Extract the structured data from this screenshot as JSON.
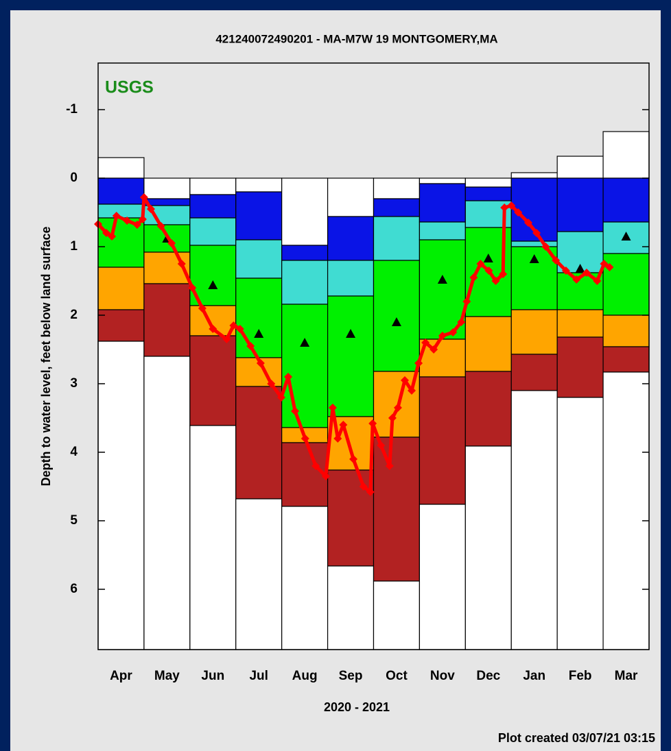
{
  "chart_data": {
    "type": "percentile_bar",
    "title": "421240072490201 - MA-M7W 19 MONTGOMERY,MA",
    "logo": "USGS",
    "ylabel": "Depth to water level, feet below land surface",
    "xlabel": "2020 - 2021",
    "footnote": "Plot created 03/07/21 03:15",
    "inverted_y": true,
    "ylim": [
      -1.68,
      6.88
    ],
    "yticks": [
      -1,
      0,
      1,
      2,
      3,
      4,
      5,
      6
    ],
    "categories": [
      "Apr",
      "May",
      "Jun",
      "Jul",
      "Aug",
      "Sep",
      "Oct",
      "Nov",
      "Dec",
      "Jan",
      "Feb",
      "Mar"
    ],
    "bands": {
      "colors": [
        "#ffffff",
        "#0a14e6",
        "#40dcd2",
        "#00f000",
        "#ffa500",
        "#b22222",
        "#ffffff"
      ],
      "values": [
        [
          -0.3,
          0.0,
          0.38,
          0.58,
          1.3,
          1.92,
          2.38
        ],
        [
          0.0,
          0.3,
          0.4,
          0.68,
          1.08,
          1.54,
          2.6
        ],
        [
          0.0,
          0.24,
          0.58,
          0.98,
          1.86,
          2.3,
          3.61
        ],
        [
          0.0,
          0.2,
          0.9,
          1.46,
          2.62,
          3.04,
          4.68
        ],
        [
          0.0,
          0.98,
          1.2,
          1.84,
          3.64,
          3.86,
          4.79
        ],
        [
          0.0,
          0.56,
          1.2,
          1.72,
          3.48,
          4.26,
          5.66
        ],
        [
          0.0,
          0.3,
          0.56,
          1.2,
          2.82,
          3.78,
          5.88
        ],
        [
          0.0,
          0.08,
          0.64,
          0.9,
          2.35,
          2.9,
          4.76
        ],
        [
          0.0,
          0.13,
          0.33,
          0.72,
          2.02,
          2.82,
          3.91
        ],
        [
          -0.08,
          0.0,
          0.92,
          1.0,
          1.92,
          2.57,
          3.1
        ],
        [
          -0.32,
          0.0,
          0.78,
          1.38,
          1.92,
          2.32,
          3.2
        ],
        [
          -0.68,
          0.0,
          0.64,
          1.1,
          2.0,
          2.46,
          2.83
        ]
      ]
    },
    "medians": {
      "color": "#000000",
      "values": [
        null,
        0.88,
        1.56,
        2.27,
        2.4,
        2.27,
        2.1,
        1.48,
        1.17,
        1.18,
        1.32,
        0.85
      ]
    },
    "daily": {
      "color": "#ff0000",
      "xlim": [
        0,
        12
      ],
      "x": [
        0.0,
        0.18,
        0.3,
        0.4,
        0.63,
        0.85,
        0.97,
        1.0,
        1.15,
        1.37,
        1.6,
        1.82,
        2.05,
        2.27,
        2.5,
        2.8,
        2.95,
        3.09,
        3.32,
        3.54,
        3.77,
        3.99,
        4.14,
        4.29,
        4.51,
        4.74,
        4.96,
        5.11,
        5.22,
        5.34,
        5.56,
        5.78,
        5.93,
        5.98,
        6.16,
        6.35,
        6.41,
        6.53,
        6.68,
        6.83,
        6.98,
        7.13,
        7.31,
        7.5,
        7.73,
        7.91,
        8.03,
        8.18,
        8.33,
        8.51,
        8.66,
        8.82,
        8.85,
        9.0,
        9.15,
        9.37,
        9.55,
        9.75,
        9.97,
        10.19,
        10.42,
        10.64,
        10.87,
        11.02,
        11.14
      ],
      "values": [
        0.67,
        0.8,
        0.85,
        0.55,
        0.62,
        0.68,
        0.6,
        0.28,
        0.45,
        0.7,
        0.95,
        1.25,
        1.6,
        1.9,
        2.2,
        2.35,
        2.15,
        2.2,
        2.45,
        2.7,
        3.0,
        3.2,
        2.9,
        3.4,
        3.8,
        4.2,
        4.35,
        3.35,
        3.8,
        3.6,
        4.1,
        4.5,
        4.58,
        3.58,
        3.9,
        4.2,
        3.5,
        3.35,
        2.95,
        3.1,
        2.7,
        2.4,
        2.5,
        2.3,
        2.25,
        2.1,
        1.8,
        1.45,
        1.25,
        1.35,
        1.5,
        1.4,
        0.43,
        0.4,
        0.5,
        0.65,
        0.8,
        1.0,
        1.2,
        1.35,
        1.48,
        1.38,
        1.5,
        1.25,
        1.3
      ]
    }
  }
}
